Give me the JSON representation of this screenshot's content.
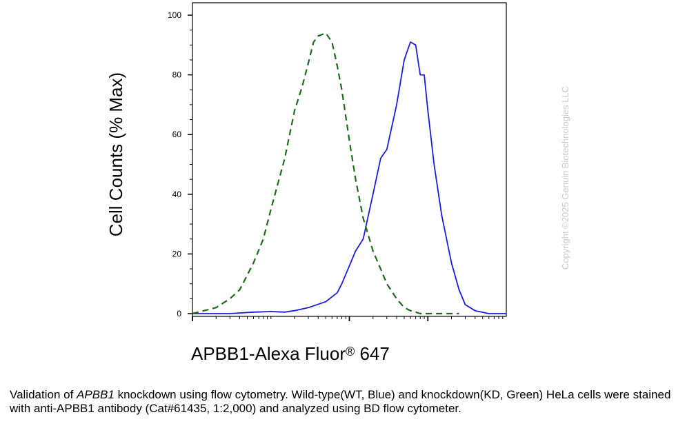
{
  "chart_data": {
    "type": "line",
    "ylabel": "Cell Counts (% Max)",
    "xlabel": "APBB1-Alexa Fluor",
    "xlabel_mark": "®",
    "xlabel_suffix": " 647",
    "xscale": "log",
    "ylim": [
      0,
      100
    ],
    "yticks": [
      "0",
      "20",
      "40",
      "60",
      "80",
      "100"
    ],
    "ytick_values": [
      0,
      20,
      40,
      60,
      80,
      100
    ],
    "xlim": [
      10,
      100000
    ],
    "grid": false,
    "legend": "none",
    "series": [
      {
        "color": "#1a1adf",
        "style": "solid",
        "x": [
          10,
          30,
          60,
          100,
          150,
          200,
          300,
          500,
          700,
          800,
          1000,
          1200,
          1500,
          2000,
          2500,
          3000,
          4000,
          5000,
          6000,
          7000,
          8000,
          9000,
          10000,
          12000,
          15000,
          20000,
          25000,
          30000,
          40000,
          60000,
          100000
        ],
        "y": [
          0,
          0,
          0.5,
          0.7,
          0.5,
          1,
          2,
          4,
          7,
          10,
          16,
          21,
          25,
          40,
          52,
          55,
          70,
          85,
          91,
          90,
          80,
          80,
          68,
          50,
          33,
          17,
          8,
          3,
          1,
          0,
          0
        ]
      },
      {
        "color": "#1a6b1a",
        "style": "dashed",
        "x": [
          10,
          20,
          30,
          40,
          60,
          80,
          100,
          150,
          200,
          250,
          300,
          350,
          400,
          500,
          600,
          700,
          800,
          1000,
          1200,
          1500,
          2000,
          2500,
          3000,
          4000,
          5000,
          6000,
          7000,
          8000,
          10000,
          15000,
          20000,
          25000
        ],
        "y": [
          0,
          2,
          5,
          8,
          17,
          25,
          35,
          52,
          68,
          76,
          84,
          91,
          93,
          94,
          91,
          83,
          75,
          58,
          45,
          32,
          21,
          15,
          10,
          5,
          2,
          1,
          0.5,
          0,
          0,
          0,
          0,
          0
        ]
      }
    ]
  },
  "watermark": "Copyright ©2025 Genuin Biotechnologies LLC",
  "caption": {
    "part1": "Validation of ",
    "gene": "APBB1",
    "part2": " knockdown using flow cytometry. Wild-type(WT, Blue) and knockdown(KD, Green) HeLa cells were stained with anti-APBB1 antibody (Cat#61435, 1:2,000) and analyzed using BD flow cytometer."
  }
}
